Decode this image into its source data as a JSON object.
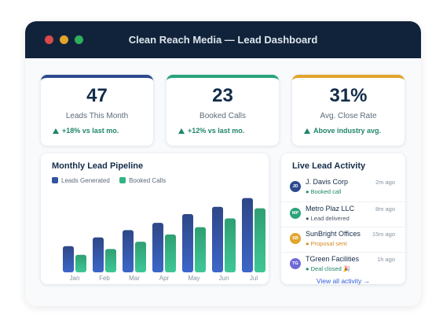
{
  "window": {
    "title": "Clean Reach Media — Lead Dashboard"
  },
  "kpis": [
    {
      "value": "47",
      "label": "Leads This Month",
      "change": "+18% vs last mo.",
      "accent": "#2d4a8f"
    },
    {
      "value": "23",
      "label": "Booked Calls",
      "change": "+12% vs last mo.",
      "accent": "#2aa37a"
    },
    {
      "value": "31%",
      "label": "Avg. Close Rate",
      "change": "Above industry avg.",
      "accent": "#e2a42a"
    }
  ],
  "chart": {
    "title": "Monthly Lead Pipeline",
    "legend": [
      "Leads Generated",
      "Booked Calls"
    ]
  },
  "chart_data": {
    "type": "bar",
    "categories": [
      "Jan",
      "Feb",
      "Mar",
      "Apr",
      "May",
      "Jun",
      "Jul"
    ],
    "series": [
      {
        "name": "Leads Generated",
        "values": [
          18,
          24,
          29,
          34,
          40,
          45,
          51
        ],
        "color": "#3553a0"
      },
      {
        "name": "Booked Calls",
        "values": [
          12,
          16,
          21,
          26,
          31,
          37,
          44
        ],
        "color": "#33b484"
      }
    ],
    "ylim": [
      0,
      60
    ]
  },
  "activity": {
    "title": "Live Lead Activity",
    "items": [
      {
        "initials": "JD",
        "name": "J. Davis Corp",
        "status": "● Booked call",
        "time": "2m ago",
        "color": "#2d4a8f",
        "status_color": "#20866a"
      },
      {
        "initials": "MP",
        "name": "Metro Plaz LLC",
        "status": "● Lead delivered",
        "time": "8m ago",
        "color": "#2aa37a",
        "status_color": "#4a5868"
      },
      {
        "initials": "SB",
        "name": "SunBright Offices",
        "status": "● Proposal sent",
        "time": "15m ago",
        "color": "#e2a42a",
        "status_color": "#d58a1e"
      },
      {
        "initials": "TG",
        "name": "TGreen Facilities",
        "status": "● Deal closed 🎉",
        "time": "1h ago",
        "color": "#6f6ad9",
        "status_color": "#20866a"
      }
    ],
    "view_all": "View all activity →"
  }
}
